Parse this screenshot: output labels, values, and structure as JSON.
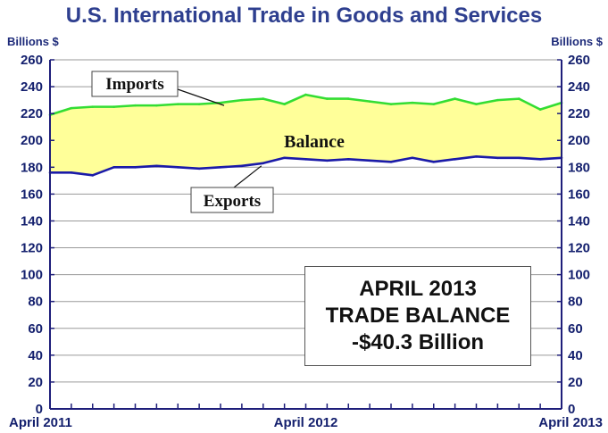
{
  "chart_data": {
    "type": "area",
    "title": "U.S. International Trade in Goods and Services",
    "ylabel_left": "Billions $",
    "ylabel_right": "Billions $",
    "ylim": [
      0,
      260
    ],
    "yticks": [
      0,
      20,
      40,
      60,
      80,
      100,
      120,
      140,
      160,
      180,
      200,
      220,
      240,
      260
    ],
    "x_tick_labels": [
      "April 2011",
      "April 2012",
      "April 2013"
    ],
    "x": [
      "2011-04",
      "2011-05",
      "2011-06",
      "2011-07",
      "2011-08",
      "2011-09",
      "2011-10",
      "2011-11",
      "2011-12",
      "2012-01",
      "2012-02",
      "2012-03",
      "2012-04",
      "2012-05",
      "2012-06",
      "2012-07",
      "2012-08",
      "2012-09",
      "2012-10",
      "2012-11",
      "2012-12",
      "2013-01",
      "2013-02",
      "2013-03",
      "2013-04"
    ],
    "series": [
      {
        "name": "Imports",
        "color": "#33dd33",
        "values": [
          219,
          224,
          225,
          225,
          226,
          226,
          227,
          227,
          228,
          230,
          231,
          227,
          234,
          231,
          231,
          229,
          227,
          228,
          227,
          231,
          227,
          230,
          231,
          223,
          228
        ]
      },
      {
        "name": "Exports",
        "color": "#1a1aa8",
        "values": [
          176,
          176,
          174,
          180,
          180,
          181,
          180,
          179,
          180,
          181,
          183,
          187,
          186,
          185,
          186,
          185,
          184,
          187,
          184,
          186,
          188,
          187,
          187,
          186,
          187
        ]
      }
    ],
    "fill_between": {
      "name": "Balance",
      "color": "#ffff99"
    },
    "annotations": {
      "imports_label": "Imports",
      "exports_label": "Exports",
      "balance_label": "Balance"
    },
    "grid": true
  },
  "callout": {
    "line1": "APRIL 2013",
    "line2": "TRADE BALANCE",
    "line3": "-$40.3 Billion"
  }
}
